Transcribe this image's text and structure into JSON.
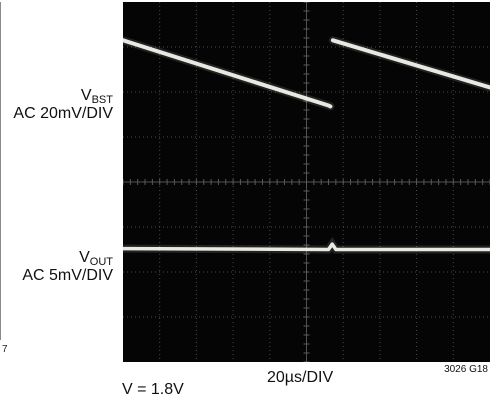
{
  "chart_data": {
    "type": "line",
    "title": "",
    "xlabel": "20µs/DIV",
    "ylabel": "",
    "grid": true,
    "grid_divisions": {
      "x": 10,
      "y": 8
    },
    "x_range_div": [
      0,
      10
    ],
    "y_range_div": [
      0,
      8
    ],
    "channels": [
      {
        "name_main": "V",
        "name_sub": "BST",
        "scale": "AC 20mV/DIV",
        "waveform": "sawtooth",
        "points_div": [
          [
            0.0,
            7.15
          ],
          [
            5.6,
            5.7
          ],
          [
            5.65,
            5.68
          ],
          [
            5.7,
            6.25
          ],
          [
            5.72,
            7.15
          ],
          [
            10.0,
            6.1
          ]
        ]
      },
      {
        "name_main": "V",
        "name_sub": "OUT",
        "scale": "AC 5mV/DIV",
        "waveform": "flat",
        "points_div": [
          [
            0.0,
            2.52
          ],
          [
            5.6,
            2.5
          ],
          [
            5.7,
            2.62
          ],
          [
            5.8,
            2.5
          ],
          [
            10.0,
            2.5
          ]
        ]
      }
    ],
    "figure_id": "3026 G18",
    "left_fragment": "7",
    "bottom_fragment": "V      = 1.8V"
  },
  "colors": {
    "screen": "#050505",
    "grid": "#5a5a5a",
    "trace": "#f4f4ee"
  }
}
